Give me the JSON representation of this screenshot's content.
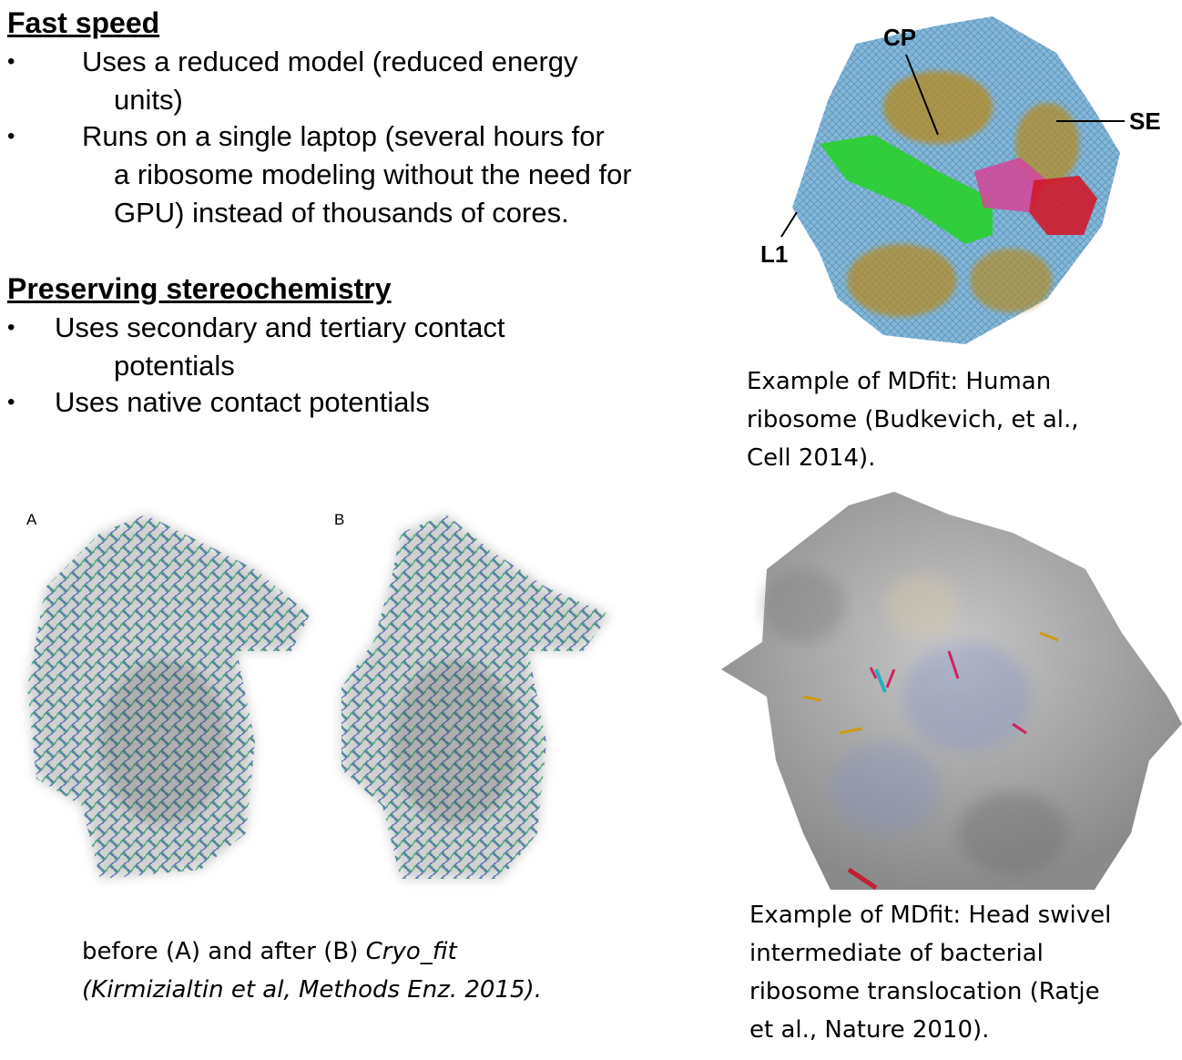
{
  "fast_speed": {
    "heading": "Fast speed",
    "bullets": [
      {
        "lines": [
          "Uses a reduced model (reduced energy",
          "units)"
        ]
      },
      {
        "lines": [
          "Runs on a single laptop (several hours for",
          "a ribosome modeling without the need for",
          "GPU) instead of thousands of cores."
        ]
      }
    ]
  },
  "stereochemistry": {
    "heading": "Preserving stereochemistry",
    "bullets": [
      {
        "lines": [
          "Uses secondary and tertiary contact",
          "potentials"
        ]
      },
      {
        "lines": [
          "Uses native contact potentials"
        ]
      }
    ]
  },
  "bullet_glyph": "•",
  "figure_cryofit": {
    "label_a": "A",
    "label_b": "B",
    "caption_line1_plain": "before (A) and after (B) ",
    "caption_line1_italic": "Cryo_fit",
    "caption_line2_italic": "(Kirmizialtin et al, Methods Enz. 2015)."
  },
  "figure_human": {
    "labels": {
      "cp": "CP",
      "se": "SE",
      "l1": "L1"
    },
    "caption_lines": [
      "Example of MDfit: Human",
      "ribosome (Budkevich, et al.,",
      "Cell 2014)."
    ]
  },
  "figure_bacterial": {
    "caption_lines": [
      "Example of MDfit: Head swivel",
      "intermediate of bacterial",
      "ribosome translocation (Ratje",
      "et al., Nature 2010)."
    ]
  },
  "colors": {
    "rna_green": "#3aa86b",
    "rna_blue": "#4a5fb0",
    "map_grey": "#9a9a9a",
    "blue_mesh": "#5b9ac4",
    "gold": "#b88a1e",
    "green": "#29d12b",
    "magenta": "#d04a9a",
    "red": "#d01a2a"
  }
}
